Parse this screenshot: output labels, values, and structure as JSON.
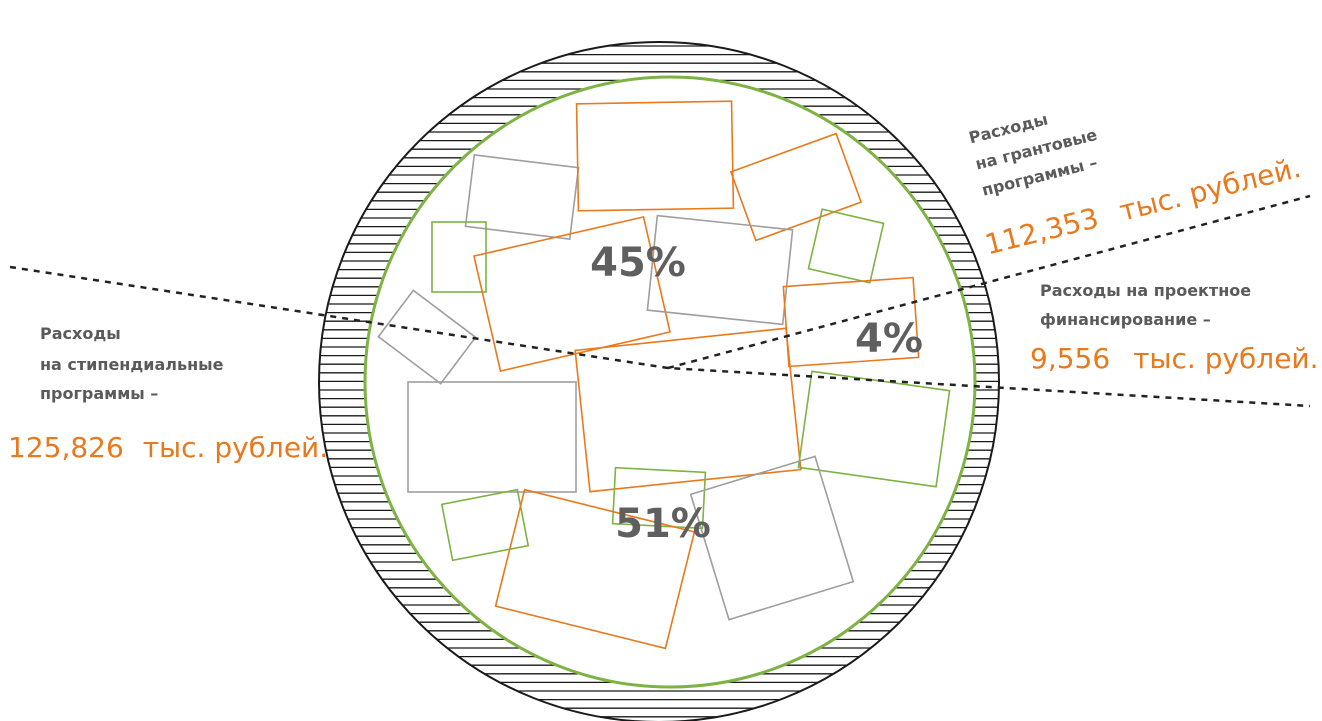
{
  "chart_data": {
    "type": "pie",
    "slices": [
      {
        "label_lines": [
          "Расходы",
          "на стипендиальные",
          "программы –"
        ],
        "amount": "125,826",
        "unit": "тыс. рублей.",
        "value": 125826,
        "percent_label": "51%",
        "percent": 51
      },
      {
        "label_lines": [
          "Расходы",
          "на грантовые",
          "программы –"
        ],
        "amount": "112,353",
        "unit": "тыс. рублей.",
        "value": 112353,
        "percent_label": "45%",
        "percent": 45
      },
      {
        "label_lines": [
          "Расходы на проектное",
          "финансирование –"
        ],
        "amount": "9,556",
        "unit": "тыс. рублей.",
        "value": 9556,
        "percent_label": "4%",
        "percent": 4
      }
    ],
    "colors": {
      "outline": "#1a1a1a",
      "inner_circle": "#7cb342",
      "orange": "#e8791c",
      "gray": "#9e9e9e",
      "green": "#7cb342",
      "text_gray": "#5a5a5a",
      "divider": "#222222"
    }
  }
}
